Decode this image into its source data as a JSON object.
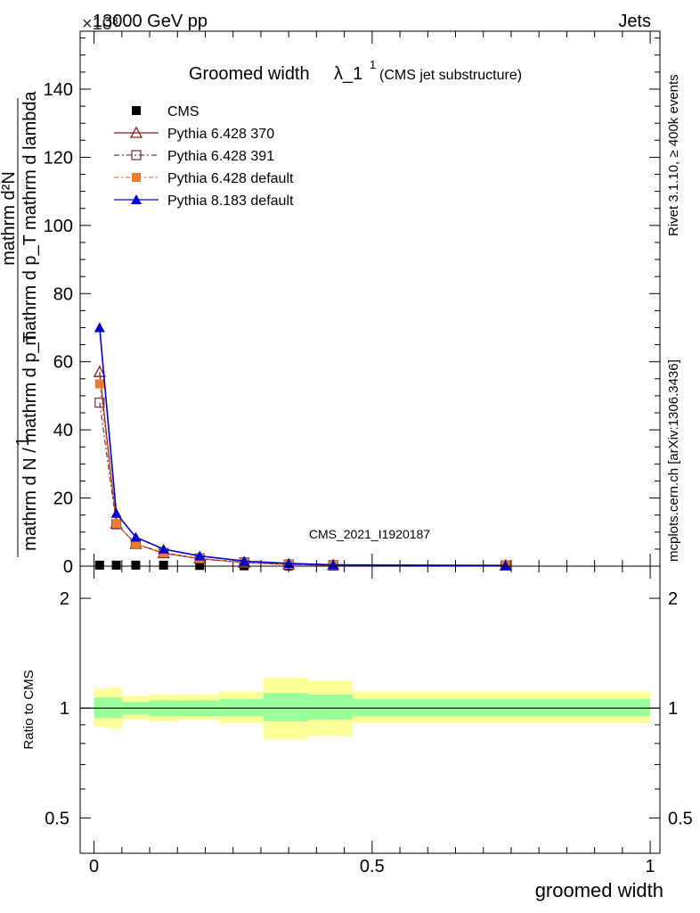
{
  "header": {
    "left": "13000 GeV pp",
    "right": "Jets",
    "exponent": "×10³"
  },
  "side": {
    "rivet": "Rivet 3.1.10, ≥ 400k events",
    "url": "mcplots.cern.ch [arXiv:1306.3436]"
  },
  "watermark": "CMS_2021_I1920187",
  "chart_data": [
    {
      "type": "line",
      "title_main": "Groomed width",
      "title_lambda": "λ_1",
      "title_sup": "1",
      "title_paren": "(CMS jet substructure)",
      "ylabel_num": "mathrm d²N",
      "ylabel_den": "mathrm d p_T mathrm d lambda",
      "ylabel_pre_num": "1",
      "ylabel_pre_den": "mathrm d N / mathrm d p_T",
      "xlim": [
        0,
        1
      ],
      "ylim": [
        0,
        157
      ],
      "yticks": [
        "0",
        "20",
        "40",
        "60",
        "80",
        "100",
        "120",
        "140"
      ],
      "legend_position": "top-left",
      "series": [
        {
          "name": "CMS",
          "color": "#000000",
          "marker": "filled-square",
          "x": [
            0.01,
            0.04,
            0.075,
            0.125,
            0.19,
            0.27,
            0.35,
            0.43,
            0.74
          ],
          "y": [
            0.3,
            0.3,
            0.3,
            0.3,
            0.2,
            0.1,
            0.05,
            0.02,
            0.01
          ]
        },
        {
          "name": "Pythia 6.428 370",
          "color": "#8b1a1a",
          "marker": "open-triangle",
          "x": [
            0.01,
            0.04,
            0.075,
            0.125,
            0.19,
            0.27,
            0.35,
            0.43,
            0.74
          ],
          "y": [
            57,
            12.5,
            6.5,
            3.8,
            2.2,
            1.0,
            0.5,
            0.3,
            0.2
          ]
        },
        {
          "name": "Pythia 6.428 391",
          "color": "#6e3b4e",
          "marker": "open-square",
          "x": [
            0.01,
            0.04,
            0.075,
            0.125,
            0.19,
            0.27,
            0.35,
            0.43,
            0.74
          ],
          "y": [
            48,
            12.3,
            6.6,
            3.9,
            2.3,
            1.1,
            0.5,
            0.3,
            0.2
          ]
        },
        {
          "name": "Pythia 6.428 default",
          "color": "#f07b2e",
          "marker": "filled-square",
          "x": [
            0.01,
            0.04,
            0.075,
            0.125,
            0.19,
            0.27,
            0.35,
            0.43,
            0.74
          ],
          "y": [
            53.5,
            12.5,
            6.5,
            3.9,
            2.3,
            1.0,
            0.5,
            0.3,
            0.2
          ]
        },
        {
          "name": "Pythia 8.183 default",
          "color": "#0000cc",
          "marker": "filled-triangle",
          "x": [
            0.01,
            0.04,
            0.075,
            0.125,
            0.19,
            0.27,
            0.35,
            0.43,
            0.74
          ],
          "y": [
            70,
            15.5,
            8.5,
            5.0,
            3.0,
            1.5,
            0.8,
            0.4,
            0.2
          ]
        }
      ]
    },
    {
      "type": "area",
      "ylabel": "Ratio to CMS",
      "xlabel": "groomed width",
      "scale": "log",
      "ylim": [
        0.4,
        2.45
      ],
      "yticks": [
        "0.5",
        "1",
        "2"
      ],
      "xticks": [
        "0",
        "0.5",
        "1"
      ],
      "reference_line": 1,
      "bins": [
        {
          "x0": 0.0,
          "x1": 0.025,
          "stat_lo": 0.94,
          "stat_hi": 1.07,
          "tot_lo": 0.89,
          "tot_hi": 1.13
        },
        {
          "x0": 0.025,
          "x1": 0.05,
          "stat_lo": 0.94,
          "stat_hi": 1.07,
          "tot_lo": 0.88,
          "tot_hi": 1.14
        },
        {
          "x0": 0.05,
          "x1": 0.1,
          "stat_lo": 0.96,
          "stat_hi": 1.04,
          "tot_lo": 0.93,
          "tot_hi": 1.08
        },
        {
          "x0": 0.1,
          "x1": 0.15,
          "stat_lo": 0.95,
          "stat_hi": 1.05,
          "tot_lo": 0.92,
          "tot_hi": 1.09
        },
        {
          "x0": 0.15,
          "x1": 0.225,
          "stat_lo": 0.95,
          "stat_hi": 1.05,
          "tot_lo": 0.93,
          "tot_hi": 1.09
        },
        {
          "x0": 0.225,
          "x1": 0.305,
          "stat_lo": 0.95,
          "stat_hi": 1.06,
          "tot_lo": 0.91,
          "tot_hi": 1.11
        },
        {
          "x0": 0.305,
          "x1": 0.385,
          "stat_lo": 0.92,
          "stat_hi": 1.1,
          "tot_lo": 0.82,
          "tot_hi": 1.21
        },
        {
          "x0": 0.385,
          "x1": 0.465,
          "stat_lo": 0.93,
          "stat_hi": 1.09,
          "tot_lo": 0.84,
          "tot_hi": 1.19
        },
        {
          "x0": 0.465,
          "x1": 1.0,
          "stat_lo": 0.95,
          "stat_hi": 1.06,
          "tot_lo": 0.91,
          "tot_hi": 1.11
        }
      ]
    }
  ]
}
